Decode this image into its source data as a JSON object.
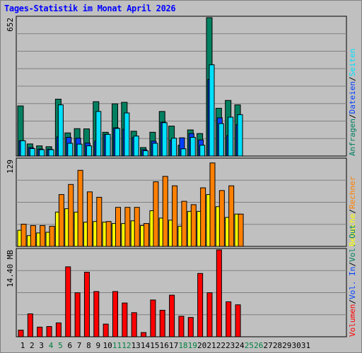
{
  "title": "Tages-Statistik im Monat April 2026",
  "colors": {
    "anfragen": "#008060",
    "dateien": "#0040ff",
    "seiten": "#00e0ff",
    "besuche": "#ffff00",
    "rechner": "#ff8000",
    "volumen": "#ff0000",
    "weekday_label": "#000000",
    "weekend_label": "#008040",
    "grid": "#808080",
    "panel_bg": "#c0c0c0"
  },
  "chart_data": [
    {
      "type": "bar",
      "panel": "top",
      "y_max_label": "652",
      "ylim": [
        0,
        652
      ],
      "categories": [
        "1",
        "2",
        "3",
        "4",
        "5",
        "6",
        "7",
        "8",
        "9",
        "10",
        "11",
        "12",
        "13",
        "14",
        "15",
        "16",
        "17",
        "18",
        "19",
        "20",
        "21",
        "22",
        "23",
        "24",
        "25",
        "26",
        "27",
        "28",
        "29",
        "30",
        "31"
      ],
      "weekend": [
        "4",
        "5",
        "11",
        "12",
        "18",
        "19",
        "25",
        "26"
      ],
      "legend_labels": [
        "Anfragen",
        "Dateien",
        "Seiten"
      ],
      "legend_separator": "/",
      "series": [
        {
          "name": "Anfragen",
          "values": [
            236,
            57,
            48,
            44,
            268,
            109,
            129,
            128,
            256,
            112,
            246,
            253,
            117,
            40,
            112,
            210,
            141,
            51,
            123,
            106,
            652,
            225,
            262,
            241,
            0,
            0,
            0,
            0,
            0,
            0,
            0
          ]
        },
        {
          "name": "Dateien",
          "values": [
            72,
            40,
            33,
            32,
            90,
            88,
            84,
            61,
            70,
            102,
            133,
            126,
            87,
            30,
            70,
            160,
            74,
            86,
            106,
            76,
            361,
            180,
            96,
            148,
            0,
            0,
            0,
            0,
            0,
            0,
            0
          ]
        },
        {
          "name": "Seiten",
          "values": [
            72,
            35,
            30,
            30,
            241,
            60,
            56,
            48,
            210,
            102,
            130,
            203,
            94,
            25,
            60,
            157,
            84,
            34,
            88,
            51,
            430,
            153,
            183,
            195,
            0,
            0,
            0,
            0,
            0,
            0,
            0
          ]
        }
      ]
    },
    {
      "type": "bar",
      "panel": "middle",
      "y_max_label": "129",
      "ylim": [
        0,
        129
      ],
      "categories": [
        "1",
        "2",
        "3",
        "4",
        "5",
        "6",
        "7",
        "8",
        "9",
        "10",
        "11",
        "12",
        "13",
        "14",
        "15",
        "16",
        "17",
        "18",
        "19",
        "20",
        "21",
        "22",
        "23",
        "24",
        "25",
        "26",
        "27",
        "28",
        "29",
        "30",
        "31"
      ],
      "legend_labels": [
        "Besuche",
        "Rechner"
      ],
      "legend_separator": "/",
      "series": [
        {
          "name": "Besuche",
          "values": [
            24,
            16,
            20,
            21,
            51,
            56,
            51,
            36,
            37,
            36,
            34,
            34,
            38,
            31,
            53,
            42,
            39,
            30,
            52,
            52,
            77,
            59,
            43,
            48,
            0,
            0,
            0,
            0,
            0,
            0,
            0
          ]
        },
        {
          "name": "Rechner",
          "values": [
            33,
            31,
            31,
            30,
            77,
            92,
            113,
            81,
            73,
            37,
            58,
            58,
            58,
            34,
            96,
            104,
            90,
            67,
            62,
            87,
            124,
            83,
            90,
            48,
            0,
            0,
            0,
            0,
            0,
            0,
            0
          ]
        }
      ]
    },
    {
      "type": "bar",
      "panel": "bottom",
      "y_max_label": "14.40 MB",
      "ylim": [
        0,
        14.4
      ],
      "categories": [
        "1",
        "2",
        "3",
        "4",
        "5",
        "6",
        "7",
        "8",
        "9",
        "10",
        "11",
        "12",
        "13",
        "14",
        "15",
        "16",
        "17",
        "18",
        "19",
        "20",
        "21",
        "22",
        "23",
        "24",
        "25",
        "26",
        "27",
        "28",
        "29",
        "30",
        "31"
      ],
      "legend_labels": [
        "Volumen",
        "Vol. In",
        "Vol. Out"
      ],
      "legend_separator": "/",
      "series": [
        {
          "name": "Volumen",
          "values": [
            1.1,
            3.8,
            1.6,
            1.7,
            2.3,
            11.6,
            7.3,
            10.7,
            7.5,
            2.1,
            7.5,
            5.6,
            4.0,
            0.7,
            6.1,
            4.4,
            6.9,
            3.4,
            3.2,
            10.5,
            7.3,
            14.4,
            5.8,
            5.3,
            0,
            0,
            0,
            0,
            0,
            0,
            0
          ]
        }
      ]
    }
  ]
}
